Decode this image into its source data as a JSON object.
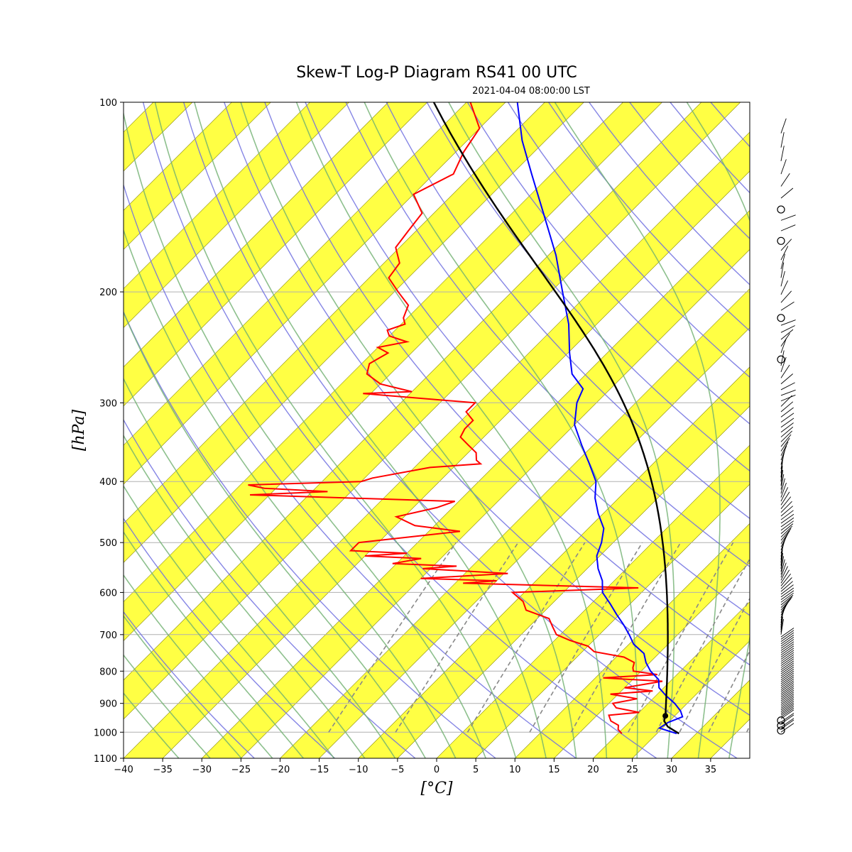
{
  "chart_data": {
    "type": "skew-t",
    "title": "Skew-T Log-P Diagram RS41 00 UTC",
    "subtitle": "2021-04-04 08:00:00 LST",
    "xlabel": "[°C]",
    "ylabel": "[hPa]",
    "xlim": [
      -40,
      40
    ],
    "ylim": [
      1100,
      100
    ],
    "x_ticks": [
      -40,
      -35,
      -30,
      -25,
      -20,
      -15,
      -10,
      -5,
      0,
      5,
      10,
      15,
      20,
      25,
      30,
      35
    ],
    "y_ticks": [
      100,
      200,
      300,
      400,
      500,
      600,
      700,
      800,
      900,
      1000,
      1100
    ],
    "grid": "pressure lines",
    "colors": {
      "temperature": "#0000ff",
      "dewpoint": "#ff0000",
      "parcel": "#000000",
      "isotherm_band": "#ffff44",
      "dry_adiabat": "#7070e0",
      "moist_adiabat": "#70b070",
      "mixing_ratio": "#888888"
    },
    "series": [
      {
        "name": "temperature",
        "p": [
          1005,
          985,
          965,
          945,
          925,
          900,
          875,
          850,
          825,
          800,
          775,
          750,
          725,
          700,
          675,
          650,
          625,
          600,
          575,
          550,
          525,
          500,
          475,
          450,
          425,
          400,
          375,
          350,
          325,
          300,
          285,
          270,
          250,
          225,
          200,
          175,
          150,
          130,
          115,
          100
        ],
        "t": [
          27.5,
          24.6,
          25.0,
          26.1,
          25.1,
          23.4,
          21.3,
          19.4,
          18.3,
          16.2,
          14.5,
          13.1,
          10.6,
          8.8,
          6.8,
          4.6,
          2.4,
          0.0,
          -1.5,
          -3.6,
          -5.4,
          -6.5,
          -8.0,
          -10.6,
          -13.0,
          -15.0,
          -18.1,
          -21.5,
          -25.0,
          -27.5,
          -28.5,
          -31.8,
          -34.8,
          -38.6,
          -43.5,
          -49.0,
          -56.0,
          -62.5,
          -68.0,
          -73.5
        ]
      },
      {
        "name": "dewpoint",
        "p": [
          1005,
          990,
          975,
          960,
          940,
          930,
          915,
          900,
          885,
          870,
          860,
          850,
          830,
          820,
          810,
          800,
          790,
          775,
          760,
          745,
          730,
          715,
          700,
          680,
          660,
          640,
          620,
          600,
          590,
          580,
          575,
          570,
          560,
          550,
          545,
          540,
          530,
          525,
          520,
          515,
          500,
          480,
          470,
          455,
          440,
          430,
          420,
          415,
          410,
          405,
          400,
          395,
          380,
          375,
          370,
          360,
          350,
          340,
          330,
          320,
          310,
          300,
          290,
          288,
          280,
          270,
          260,
          250,
          245,
          240,
          235,
          230,
          225,
          220,
          210,
          200,
          190,
          180,
          170,
          160,
          150,
          140,
          130,
          120,
          110,
          100
        ],
        "td": [
          20.5,
          19.5,
          19.0,
          17.5,
          16.5,
          20.0,
          16.5,
          15.5,
          18.0,
          14.0,
          19.0,
          15.0,
          19.0,
          11.0,
          17.5,
          14.0,
          13.5,
          13.0,
          11.0,
          6.5,
          5.0,
          2.0,
          -0.5,
          -2.0,
          -3.5,
          -7.5,
          -9.0,
          -11.5,
          4.0,
          -19.0,
          -15.0,
          -25.0,
          -14.5,
          -26.0,
          -22.0,
          -30.5,
          -27.5,
          -35.0,
          -30.0,
          -37.5,
          -37.5,
          -26.0,
          -32.5,
          -36.0,
          -32.0,
          -30.5,
          -57.5,
          -48.0,
          -56.5,
          -59.0,
          -45.0,
          -44.0,
          -38.0,
          -32.0,
          -33.0,
          -34.0,
          -36.0,
          -38.0,
          -38.5,
          -38.5,
          -40.5,
          -40.5,
          -56.0,
          -50.0,
          -55.0,
          -58.0,
          -59.0,
          -58.0,
          -60.0,
          -57.0,
          -60.0,
          -61.0,
          -59.5,
          -60.5,
          -61.5,
          -64.5,
          -67.5,
          -68.0,
          -70.5,
          -71.0,
          -71.5,
          -75.0,
          -72.5,
          -74.0,
          -75.0,
          -79.5
        ]
      },
      {
        "name": "parcel",
        "p": [
          1005,
          980,
          960,
          942
        ],
        "t": [
          27.8,
          25.5,
          24.3,
          23.8
        ]
      }
    ],
    "lcl_marker": {
      "p": 942,
      "t": 23.8
    },
    "wind_barbs": "present on right-hand column"
  }
}
